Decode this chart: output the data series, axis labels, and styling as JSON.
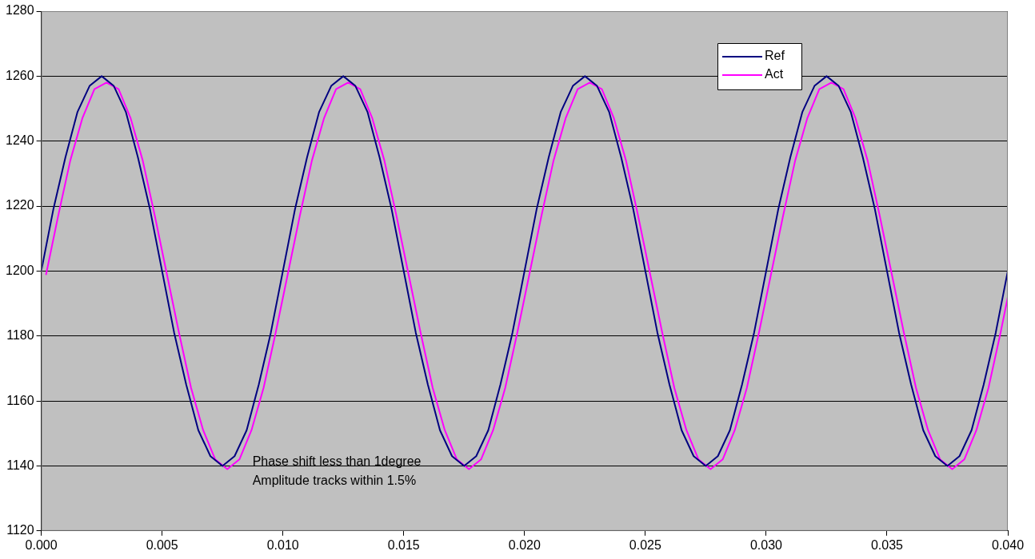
{
  "chart_data": {
    "type": "line",
    "xlim": [
      0,
      0.04
    ],
    "ylim": [
      1120,
      1280
    ],
    "xticks": [
      {
        "value": 0,
        "label": "0.000"
      },
      {
        "value": 0.005,
        "label": "0.005"
      },
      {
        "value": 0.01,
        "label": "0.010"
      },
      {
        "value": 0.015,
        "label": "0.015"
      },
      {
        "value": 0.02,
        "label": "0.020"
      },
      {
        "value": 0.025,
        "label": "0.025"
      },
      {
        "value": 0.03,
        "label": "0.030"
      },
      {
        "value": 0.035,
        "label": "0.035"
      },
      {
        "value": 0.04,
        "label": "0.040"
      }
    ],
    "yticks": [
      1120,
      1140,
      1160,
      1180,
      1200,
      1220,
      1240,
      1260,
      1280
    ],
    "grid": "y",
    "legend": "top right",
    "marker": "none",
    "line_style": "solid",
    "annotations": [
      "Phase shift less than 1degree",
      "Amplitude tracks within 1.5%"
    ],
    "series": [
      {
        "name": "Ref",
        "color": "#000080",
        "x": [
          0,
          0.0005,
          0.001,
          0.0015,
          0.002,
          0.0025,
          0.003,
          0.0035,
          0.004,
          0.0045,
          0.005,
          0.0055,
          0.006,
          0.0065,
          0.007,
          0.0075,
          0.008,
          0.0085,
          0.009,
          0.0095,
          0.01,
          0.0105,
          0.011,
          0.0115,
          0.012,
          0.0125,
          0.013,
          0.0135,
          0.014,
          0.0145,
          0.015,
          0.0155,
          0.016,
          0.0165,
          0.017,
          0.0175,
          0.018,
          0.0185,
          0.019,
          0.0195,
          0.02,
          0.0205,
          0.021,
          0.0215,
          0.022,
          0.0225,
          0.023,
          0.0235,
          0.024,
          0.0245,
          0.025,
          0.0255,
          0.026,
          0.0265,
          0.027,
          0.0275,
          0.028,
          0.0285,
          0.029,
          0.0295,
          0.03,
          0.0305,
          0.031,
          0.0315,
          0.032,
          0.0325,
          0.033,
          0.0335,
          0.034,
          0.0345,
          0.035,
          0.0355,
          0.036,
          0.0365,
          0.037,
          0.0375,
          0.038,
          0.0385,
          0.039,
          0.0395,
          0.04
        ],
        "values": [
          1200,
          1219,
          1235,
          1249,
          1257,
          1260,
          1257,
          1249,
          1235,
          1219,
          1200,
          1181,
          1165,
          1151,
          1143,
          1140,
          1143,
          1151,
          1165,
          1181,
          1200,
          1219,
          1235,
          1249,
          1257,
          1260,
          1257,
          1249,
          1235,
          1219,
          1200,
          1181,
          1165,
          1151,
          1143,
          1140,
          1143,
          1151,
          1165,
          1181,
          1200,
          1219,
          1235,
          1249,
          1257,
          1260,
          1257,
          1249,
          1235,
          1219,
          1200,
          1181,
          1165,
          1151,
          1143,
          1140,
          1143,
          1151,
          1165,
          1181,
          1200,
          1219,
          1235,
          1249,
          1257,
          1260,
          1257,
          1249,
          1235,
          1219,
          1200,
          1181,
          1165,
          1151,
          1143,
          1140,
          1143,
          1151,
          1165,
          1181,
          1200
        ]
      },
      {
        "name": "Act",
        "color": "#ff00ff",
        "x": [
          0.0002,
          0.0007,
          0.0012,
          0.0017,
          0.0022,
          0.0027,
          0.0032,
          0.0037,
          0.0042,
          0.0047,
          0.0052,
          0.0057,
          0.0062,
          0.0067,
          0.0072,
          0.0077,
          0.0082,
          0.0087,
          0.0092,
          0.0097,
          0.0102,
          0.0107,
          0.0112,
          0.0117,
          0.0122,
          0.0127,
          0.0132,
          0.0137,
          0.0142,
          0.0147,
          0.0152,
          0.0157,
          0.0162,
          0.0167,
          0.0172,
          0.0177,
          0.0182,
          0.0187,
          0.0192,
          0.0197,
          0.0202,
          0.0207,
          0.0212,
          0.0217,
          0.0222,
          0.0227,
          0.0232,
          0.0237,
          0.0242,
          0.0247,
          0.0252,
          0.0257,
          0.0262,
          0.0267,
          0.0272,
          0.0277,
          0.0282,
          0.0287,
          0.0292,
          0.0297,
          0.0302,
          0.0307,
          0.0312,
          0.0317,
          0.0322,
          0.0327,
          0.0332,
          0.0337,
          0.0342,
          0.0347,
          0.0352,
          0.0357,
          0.0362,
          0.0367,
          0.0372,
          0.0377,
          0.0382,
          0.0387,
          0.0392,
          0.0397,
          0.04
        ],
        "values": [
          1199,
          1217,
          1234,
          1247,
          1256,
          1258,
          1256,
          1247,
          1234,
          1217,
          1199,
          1181,
          1164,
          1151,
          1142,
          1139,
          1142,
          1151,
          1164,
          1181,
          1199,
          1217,
          1234,
          1247,
          1256,
          1258,
          1256,
          1247,
          1234,
          1217,
          1199,
          1181,
          1164,
          1151,
          1142,
          1139,
          1142,
          1151,
          1164,
          1181,
          1199,
          1217,
          1234,
          1247,
          1256,
          1258,
          1256,
          1247,
          1234,
          1217,
          1199,
          1181,
          1164,
          1151,
          1142,
          1139,
          1142,
          1151,
          1164,
          1181,
          1199,
          1217,
          1234,
          1247,
          1256,
          1258,
          1256,
          1247,
          1234,
          1217,
          1199,
          1181,
          1164,
          1151,
          1142,
          1139,
          1142,
          1151,
          1164,
          1181,
          1192
        ]
      }
    ]
  }
}
